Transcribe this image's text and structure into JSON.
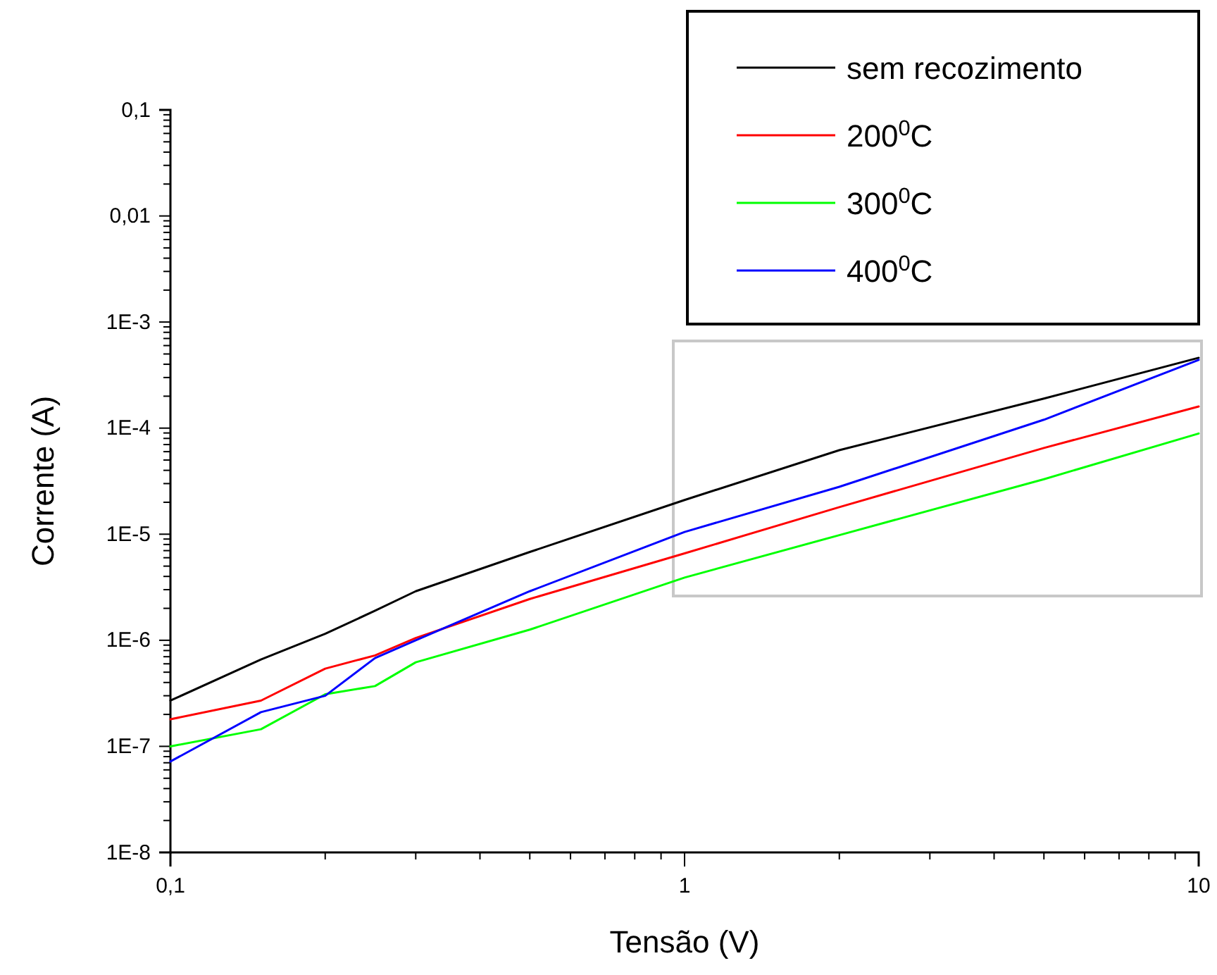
{
  "chart_data": {
    "type": "line",
    "xlabel": "Tensão (V)",
    "ylabel": "Corrente (A)",
    "log": "xy",
    "xlim": [
      0.1,
      10
    ],
    "ylim": [
      1e-08,
      0.1
    ],
    "xticks": [
      {
        "value": 0.1,
        "label": "0,1"
      },
      1,
      10
    ],
    "yticks": [
      {
        "value": 1e-08,
        "label": "1E-8"
      },
      {
        "value": 1e-07,
        "label": "1E-7"
      },
      {
        "value": 1e-06,
        "label": "1E-6"
      },
      {
        "value": 1e-05,
        "label": "1E-5"
      },
      {
        "value": 0.0001,
        "label": "1E-4"
      },
      {
        "value": 0.001,
        "label": "1E-3"
      },
      {
        "value": 0.01,
        "label": "0,01"
      },
      {
        "value": 0.1,
        "label": "0,1"
      }
    ],
    "x": [
      0.1,
      0.15,
      0.2,
      0.25,
      0.3,
      0.5,
      1,
      2,
      5,
      10
    ],
    "series": [
      {
        "name": "sem recozimento",
        "color": "#000000",
        "values": [
          2.7e-07,
          6.6e-07,
          1.15e-06,
          1.9e-06,
          2.9e-06,
          6.8e-06,
          2.1e-05,
          6.2e-05,
          0.00019,
          0.00046
        ]
      },
      {
        "name": "200$^{0}$C",
        "color": "#ff0000",
        "values": [
          1.8e-07,
          2.7e-07,
          5.4e-07,
          7.2e-07,
          1.05e-06,
          2.45e-06,
          6.6e-06,
          1.8e-05,
          6.5e-05,
          0.00016
        ]
      },
      {
        "name": "300$^{0}$C",
        "color": "#00ff00",
        "values": [
          1e-07,
          1.45e-07,
          3.1e-07,
          3.7e-07,
          6.2e-07,
          1.26e-06,
          3.9e-06,
          9.8e-06,
          3.3e-05,
          8.9e-05
        ]
      },
      {
        "name": "400$^{0}$C",
        "color": "#0000ff",
        "values": [
          7.2e-08,
          2.1e-07,
          3e-07,
          6.8e-07,
          1e-06,
          2.9e-06,
          1.05e-05,
          2.8e-05,
          0.00012,
          0.00044
        ]
      }
    ],
    "legend": "top right",
    "grid": false,
    "marker": "none",
    "line_style": "solid"
  }
}
